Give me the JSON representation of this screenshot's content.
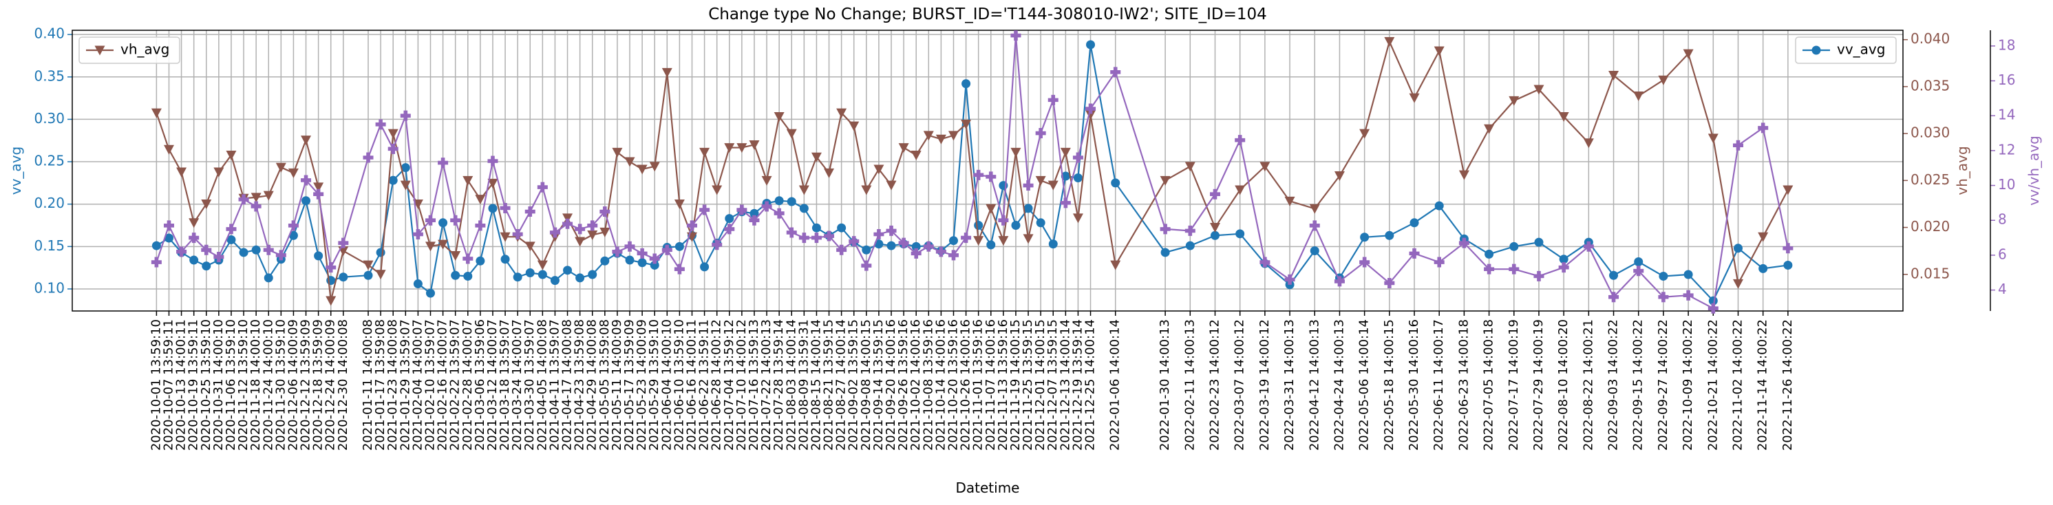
{
  "chart_data": {
    "type": "line",
    "title": "Change type No Change; BURST_ID='T144-308010-IW2'; SITE_ID=104",
    "xlabel": "Datetime",
    "ylabel": "vv_avg",
    "y2label": "vh_avg",
    "y3label": "vv/vh_avg",
    "x": [
      "2020-10-01 13:59:10",
      "2020-10-07 13:59:11",
      "2020-10-13 14:00:11",
      "2020-10-19 13:59:11",
      "2020-10-25 13:59:10",
      "2020-10-31 14:00:10",
      "2020-11-06 13:59:10",
      "2020-11-12 13:59:10",
      "2020-11-18 14:00:10",
      "2020-11-24 14:00:10",
      "2020-11-30 13:59:10",
      "2020-12-06 14:00:09",
      "2020-12-12 13:59:09",
      "2020-12-18 13:59:09",
      "2020-12-24 14:00:09",
      "2020-12-30 14:00:08",
      "2021-01-11 14:00:08",
      "2021-01-17 13:59:08",
      "2021-01-23 14:00:08",
      "2021-01-29 13:59:07",
      "2021-02-04 14:00:07",
      "2021-02-10 13:59:07",
      "2021-02-16 14:00:07",
      "2021-02-22 13:59:07",
      "2021-02-28 14:00:07",
      "2021-03-06 13:59:06",
      "2021-03-12 14:00:07",
      "2021-03-18 13:59:07",
      "2021-03-24 14:00:07",
      "2021-03-30 13:59:07",
      "2021-04-05 14:00:08",
      "2021-04-11 13:59:07",
      "2021-04-17 14:00:08",
      "2021-04-23 13:59:08",
      "2021-04-29 14:00:08",
      "2021-05-05 13:59:08",
      "2021-05-11 14:00:09",
      "2021-05-17 13:59:09",
      "2021-05-23 14:00:09",
      "2021-05-29 13:59:10",
      "2021-06-04 14:00:10",
      "2021-06-10 13:59:10",
      "2021-06-16 14:00:11",
      "2021-06-22 13:59:11",
      "2021-06-28 14:00:12",
      "2021-07-04 13:59:12",
      "2021-07-10 14:00:12",
      "2021-07-16 13:59:13",
      "2021-07-22 14:00:13",
      "2021-07-28 13:59:14",
      "2021-08-03 14:00:14",
      "2021-08-09 13:59:31",
      "2021-08-15 14:00:14",
      "2021-08-21 13:59:15",
      "2021-08-27 14:00:14",
      "2021-09-02 13:59:15",
      "2021-09-08 14:00:15",
      "2021-09-14 13:59:15",
      "2021-09-20 14:00:16",
      "2021-09-26 13:59:16",
      "2021-10-02 14:00:16",
      "2021-10-08 13:59:16",
      "2021-10-14 14:00:16",
      "2021-10-20 13:59:16",
      "2021-10-26 14:00:16",
      "2021-11-01 13:59:16",
      "2021-11-07 14:00:16",
      "2021-11-13 13:59:16",
      "2021-11-19 14:00:15",
      "2021-11-25 13:59:15",
      "2021-12-01 14:00:15",
      "2021-12-07 13:59:15",
      "2021-12-13 14:00:14",
      "2021-12-19 13:59:14",
      "2021-12-25 14:00:14",
      "2022-01-06 14:00:14",
      "2022-01-30 14:00:13",
      "2022-02-11 14:00:13",
      "2022-02-23 14:00:12",
      "2022-03-07 14:00:12",
      "2022-03-19 14:00:12",
      "2022-03-31 14:00:13",
      "2022-04-12 14:00:13",
      "2022-04-24 14:00:13",
      "2022-05-06 14:00:14",
      "2022-05-18 14:00:15",
      "2022-05-30 14:00:16",
      "2022-06-11 14:00:17",
      "2022-06-23 14:00:18",
      "2022-07-05 14:00:18",
      "2022-07-17 14:00:19",
      "2022-07-29 14:00:19",
      "2022-08-10 14:00:20",
      "2022-08-22 14:00:21",
      "2022-09-03 14:00:22",
      "2022-09-15 14:00:22",
      "2022-09-27 14:00:22",
      "2022-10-09 14:00:22",
      "2022-10-21 14:00:22",
      "2022-11-02 14:00:22",
      "2022-11-14 14:00:22",
      "2022-11-26 14:00:22"
    ],
    "xticks": [
      "2020-10-01 13:59:10",
      "2020-10-07 13:59:11",
      "2020-10-13 14:00:11",
      "2020-10-19 13:59:11",
      "2020-10-25 13:59:10",
      "2020-10-31 14:00:10",
      "2020-11-06 13:59:10",
      "2020-11-12 13:59:10",
      "2020-11-18 14:00:10",
      "2020-11-24 14:00:10",
      "2020-11-30 13:59:10",
      "2020-12-06 14:00:09",
      "2020-12-12 13:59:09",
      "2020-12-18 13:59:09",
      "2020-12-24 14:00:09",
      "2020-12-30 14:00:08",
      "2021-01-11 14:00:08",
      "2021-01-17 13:59:08",
      "2021-01-23 14:00:08",
      "2021-01-29 13:59:07",
      "2021-02-04 14:00:07",
      "2021-02-10 13:59:07",
      "2021-02-16 14:00:07",
      "2021-02-22 13:59:07",
      "2021-02-28 14:00:07",
      "2021-03-06 13:59:06",
      "2021-03-12 14:00:07",
      "2021-03-18 13:59:07",
      "2021-03-24 14:00:07",
      "2021-03-30 13:59:07",
      "2021-04-05 14:00:08",
      "2021-04-11 13:59:07",
      "2021-04-17 14:00:08",
      "2021-04-23 13:59:08",
      "2021-04-29 14:00:08",
      "2021-05-05 13:59:08",
      "2021-05-11 14:00:09",
      "2021-05-17 13:59:09",
      "2021-05-23 14:00:09",
      "2021-05-29 13:59:10",
      "2021-06-04 14:00:10",
      "2021-06-10 13:59:10",
      "2021-06-16 14:00:11",
      "2021-06-22 13:59:11",
      "2021-06-28 14:00:12",
      "2021-07-04 13:59:12",
      "2021-07-10 14:00:12",
      "2021-07-16 13:59:13",
      "2021-07-22 14:00:13",
      "2021-07-28 13:59:14",
      "2021-08-03 14:00:14",
      "2021-08-09 13:59:31",
      "2021-08-15 14:00:14",
      "2021-08-21 13:59:15",
      "2021-08-27 14:00:14",
      "2021-09-02 13:59:15",
      "2021-09-08 14:00:15",
      "2021-09-14 13:59:15",
      "2021-09-20 14:00:16",
      "2021-09-26 13:59:16",
      "2021-10-02 14:00:16",
      "2021-10-08 13:59:16",
      "2021-10-14 14:00:16",
      "2021-10-20 13:59:16",
      "2021-10-26 14:00:16",
      "2021-11-01 13:59:16",
      "2021-11-07 14:00:16",
      "2021-11-13 13:59:16",
      "2021-11-19 14:00:15",
      "2021-11-25 13:59:15",
      "2021-12-01 14:00:15",
      "2021-12-07 13:59:15",
      "2021-12-13 14:00:14",
      "2021-12-19 13:59:14",
      "2021-12-25 14:00:14",
      "2022-01-06 14:00:14",
      "2022-01-30 14:00:13",
      "2022-02-11 14:00:13",
      "2022-02-23 14:00:12",
      "2022-03-07 14:00:12",
      "2022-03-19 14:00:12",
      "2022-03-31 14:00:13",
      "2022-04-12 14:00:13",
      "2022-04-24 14:00:13",
      "2022-05-06 14:00:14",
      "2022-05-18 14:00:15",
      "2022-05-30 14:00:16",
      "2022-06-11 14:00:17",
      "2022-06-23 14:00:18",
      "2022-07-05 14:00:18",
      "2022-07-17 14:00:19",
      "2022-07-29 14:00:19",
      "2022-08-10 14:00:20",
      "2022-08-22 14:00:21",
      "2022-09-03 14:00:22",
      "2022-09-15 14:00:22",
      "2022-09-27 14:00:22",
      "2022-10-09 14:00:22",
      "2022-10-21 14:00:22",
      "2022-11-02 14:00:22",
      "2022-11-14 14:00:22",
      "2022-11-26 14:00:22"
    ],
    "xlim": [
      "2020-08-22",
      "2023-01-21"
    ],
    "ylim": [
      0.074,
      0.405
    ],
    "yticks": [
      {
        "value": 0.1,
        "label": "0.10"
      },
      0.15,
      {
        "value": 0.2,
        "label": "0.20"
      },
      0.25,
      {
        "value": 0.3,
        "label": "0.30"
      },
      0.35,
      {
        "value": 0.4,
        "label": "0.40"
      }
    ],
    "y2lim": [
      0.0111,
      0.041
    ],
    "y2ticks": [
      0.015,
      {
        "value": 0.02,
        "label": "0.020"
      },
      0.025,
      {
        "value": 0.03,
        "label": "0.030"
      },
      0.035,
      {
        "value": 0.04,
        "label": "0.040"
      }
    ],
    "y3lim": [
      2.8,
      18.9
    ],
    "y3ticks": [
      4,
      6,
      8,
      10,
      12,
      14,
      16,
      18
    ],
    "grid": true,
    "series": [
      {
        "name": "vv_avg",
        "color": "#1f77b4",
        "marker": "circle",
        "axis": "y",
        "legend_loc": "upper right",
        "values": [
          0.151,
          0.16,
          0.143,
          0.134,
          0.127,
          0.134,
          0.158,
          0.143,
          0.146,
          0.113,
          0.135,
          0.163,
          0.204,
          0.139,
          0.11,
          0.114,
          0.116,
          0.143,
          0.228,
          0.243,
          0.106,
          0.095,
          0.178,
          0.116,
          0.115,
          0.133,
          0.195,
          0.135,
          0.114,
          0.119,
          0.117,
          0.11,
          0.122,
          0.113,
          0.117,
          0.133,
          0.142,
          0.134,
          0.131,
          0.128,
          0.149,
          0.15,
          0.163,
          0.126,
          0.154,
          0.183,
          0.191,
          0.189,
          0.201,
          0.204,
          0.203,
          0.195,
          0.172,
          0.163,
          0.172,
          0.155,
          0.146,
          0.153,
          0.151,
          0.153,
          0.15,
          0.151,
          0.145,
          0.157,
          0.342,
          0.175,
          0.152,
          0.222,
          0.175,
          0.195,
          0.178,
          0.153,
          0.233,
          0.231,
          0.388,
          0.225,
          0.143,
          0.151,
          0.163,
          0.165,
          0.13,
          0.105,
          0.145,
          0.113,
          0.161,
          0.163,
          0.178,
          0.198,
          0.159,
          0.141,
          0.15,
          0.155,
          0.135,
          0.155,
          0.116,
          0.132,
          0.115,
          0.117,
          0.086,
          0.148,
          0.124,
          0.128
        ]
      },
      {
        "name": "vh_avg",
        "color": "#8c564b",
        "marker": "triangle-down",
        "axis": "y2",
        "legend_loc": "upper left",
        "values": [
          0.0322,
          0.0283,
          0.0259,
          0.0205,
          0.0225,
          0.0259,
          0.0277,
          0.0231,
          0.0232,
          0.0234,
          0.0264,
          0.0258,
          0.0293,
          0.0243,
          0.0122,
          0.0175,
          0.016,
          0.015,
          0.03,
          0.0245,
          0.0225,
          0.018,
          0.0182,
          0.017,
          0.025,
          0.023,
          0.0247,
          0.019,
          0.019,
          0.018,
          0.016,
          0.019,
          0.021,
          0.0185,
          0.0192,
          0.0195,
          0.028,
          0.027,
          0.0262,
          0.0265,
          0.0365,
          0.0225,
          0.019,
          0.028,
          0.024,
          0.0285,
          0.0285,
          0.0288,
          0.025,
          0.0318,
          0.03,
          0.024,
          0.0275,
          0.0258,
          0.0322,
          0.0308,
          0.024,
          0.0262,
          0.0245,
          0.0285,
          0.0277,
          0.0298,
          0.0294,
          0.0298,
          0.031,
          0.0186,
          0.022,
          0.0186,
          0.028,
          0.0188,
          0.025,
          0.0245,
          0.028,
          0.021,
          0.032,
          0.016,
          0.025,
          0.0265,
          0.02,
          0.024,
          0.0265,
          0.0228,
          0.022,
          0.0255,
          0.03,
          0.0398,
          0.0338,
          0.0388,
          0.0256,
          0.0305,
          0.0335,
          0.0347,
          0.0318,
          0.029,
          0.0362,
          0.034,
          0.0357,
          0.0385,
          0.0295,
          0.014,
          0.019,
          0.024
        ]
      },
      {
        "color": "#9467bd",
        "marker": "plus",
        "axis": "y3",
        "values": [
          5.6,
          7.7,
          6.2,
          7.0,
          6.3,
          5.9,
          7.5,
          9.2,
          8.8,
          6.3,
          6.0,
          7.7,
          10.3,
          9.5,
          5.3,
          6.7,
          11.6,
          13.5,
          12.1,
          14.0,
          7.2,
          8.0,
          11.3,
          8.0,
          5.8,
          7.7,
          11.4,
          8.7,
          7.2,
          8.5,
          9.9,
          7.3,
          7.8,
          7.5,
          7.7,
          8.5,
          6.2,
          6.5,
          6.1,
          5.8,
          6.3,
          5.2,
          7.7,
          8.6,
          6.6,
          7.5,
          8.6,
          8.0,
          8.8,
          8.4,
          7.3,
          7.0,
          7.0,
          7.1,
          6.3,
          6.8,
          5.4,
          7.2,
          7.4,
          6.7,
          6.1,
          6.5,
          6.2,
          6.0,
          7.0,
          10.6,
          10.5,
          8.0,
          18.6,
          10.0,
          13.0,
          14.9,
          9.0,
          11.6,
          14.4,
          16.5,
          7.5,
          7.4,
          9.5,
          12.6,
          5.6,
          4.6,
          7.7,
          4.5,
          5.6,
          4.4,
          6.1,
          5.6,
          6.7,
          5.2,
          5.2,
          4.8,
          5.3,
          6.5,
          3.6,
          5.1,
          3.6,
          3.7,
          2.95,
          12.3,
          13.3,
          6.4
        ]
      }
    ]
  }
}
